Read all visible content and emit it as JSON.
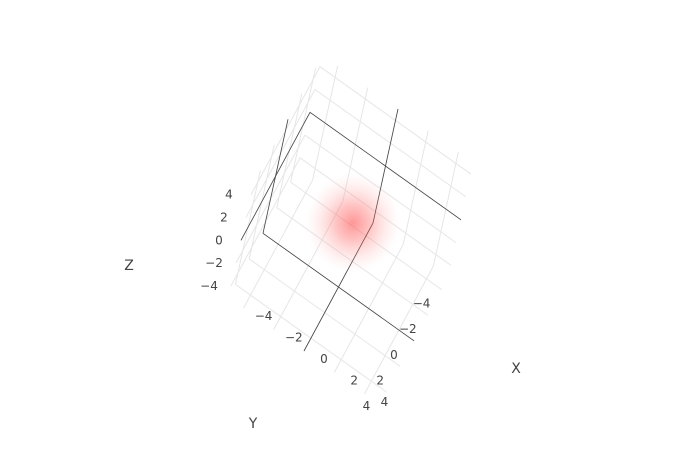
{
  "chart_data": {
    "type": "volume",
    "title": "",
    "axes": {
      "x": {
        "title": "X",
        "range": [
          -5,
          5
        ],
        "ticks": [
          -4,
          -2,
          0,
          2,
          4
        ],
        "tick_labels": [
          "−4",
          "−2",
          "0",
          "2",
          "4"
        ]
      },
      "y": {
        "title": "Y",
        "range": [
          -5,
          5
        ],
        "ticks": [
          -4,
          -2,
          0,
          2,
          4
        ],
        "tick_labels": [
          "−4",
          "−2",
          "0",
          "2",
          "4"
        ]
      },
      "z": {
        "title": "Z",
        "range": [
          -5,
          5
        ],
        "ticks": [
          -4,
          -2,
          0,
          2,
          4
        ],
        "tick_labels": [
          "−4",
          "−2",
          "0",
          "2",
          "4"
        ]
      }
    },
    "grid": true,
    "volume": {
      "shape": "gaussian-blob",
      "center": [
        0,
        0,
        0
      ],
      "spread": 1.3,
      "color": "#ff3333",
      "max_opacity": 0.55
    }
  }
}
